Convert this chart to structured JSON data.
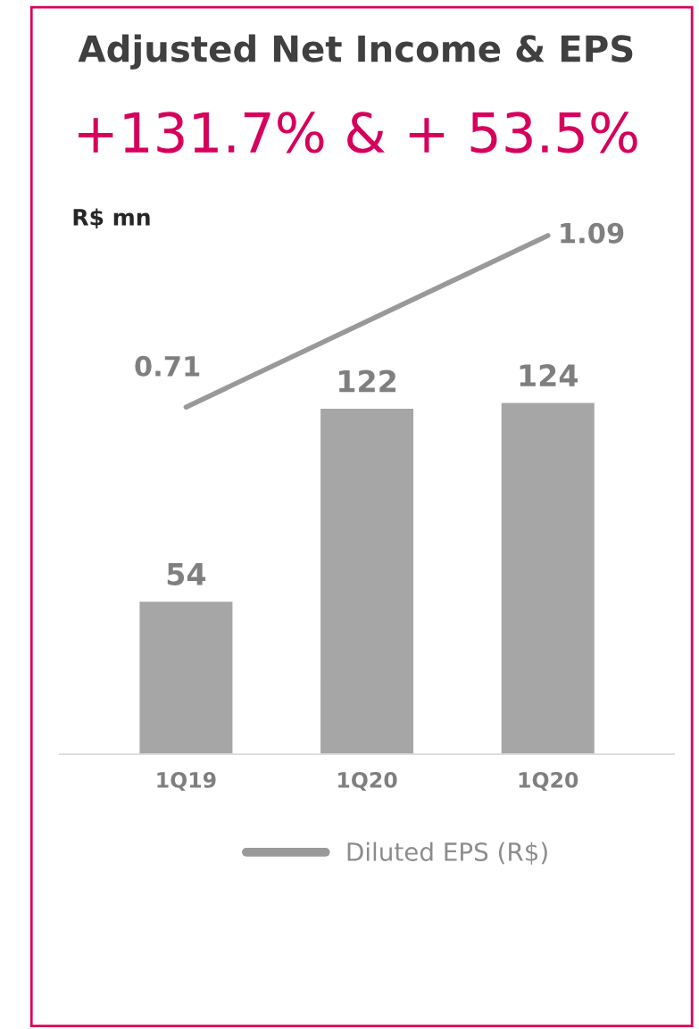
{
  "chart_data": {
    "type": "bar",
    "title": "Adjusted Net Income & EPS",
    "subtitle": "+131.7% & + 53.5%",
    "annotations": [
      "R$ mn"
    ],
    "categories": [
      "1Q19",
      "1Q20",
      "1Q20"
    ],
    "series": [
      {
        "color": "#a6a6a6",
        "values": [
          54,
          122,
          124
        ]
      },
      {
        "type": "line",
        "name": "Diluted EPS (R$)",
        "color": "#999999",
        "axis": "y2",
        "values": [
          0.71,
          null,
          1.09
        ]
      }
    ],
    "data_labels": true,
    "tick_labels": "x",
    "grid": false,
    "legend": "bottom",
    "marker": "none",
    "line_style": "solid"
  }
}
